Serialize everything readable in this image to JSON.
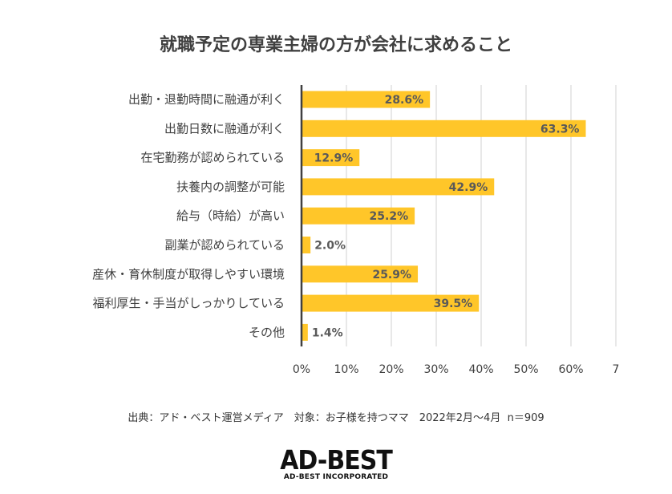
{
  "chart_data": {
    "type": "bar",
    "orientation": "horizontal",
    "title": "就職予定の専業主婦の方が会社に求めること",
    "categories": [
      "出勤・退勤時間に融通が利く",
      "出勤日数に融通が利く",
      "在宅勤務が認められている",
      "扶養内の調整が可能",
      "給与（時給）が高い",
      "副業が認められている",
      "産休・育休制度が取得しやすい環境",
      "福利厚生・手当がしっかりしている",
      "その他"
    ],
    "values": [
      28.6,
      63.3,
      12.9,
      42.9,
      25.2,
      2.0,
      25.9,
      39.5,
      1.4
    ],
    "value_labels": [
      "28.6%",
      "63.3%",
      "12.9%",
      "42.9%",
      "25.2%",
      "2.0%",
      "25.9%",
      "39.5%",
      "1.4%"
    ],
    "xlim": [
      0,
      70
    ],
    "x_ticks": [
      "0%",
      "10%",
      "20%",
      "30%",
      "40%",
      "50%",
      "60%",
      "7"
    ],
    "grid": true,
    "bar_color": "#FFC629",
    "gridline_color": "#d0d0d0",
    "axis_color": "#404040"
  },
  "source_note": "出典：アド・ベスト運営メディア　対象：お子様を持つママ　2022年2月～4月  n＝909",
  "logo": {
    "main": "AD-BEST",
    "sub": "AD-BEST INCORPORATED"
  }
}
